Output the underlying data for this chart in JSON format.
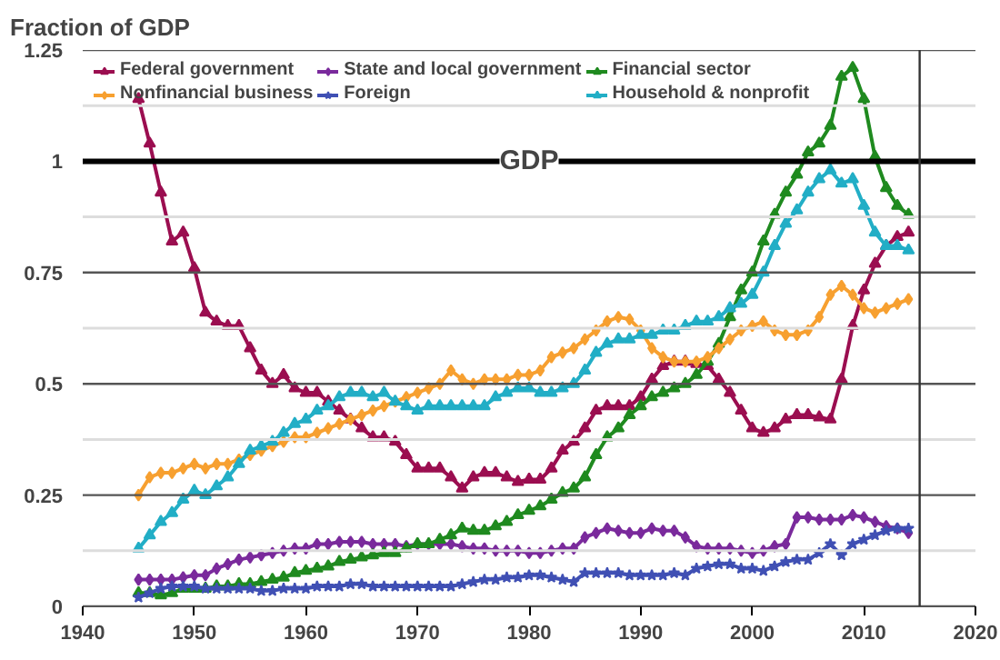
{
  "chart_data": {
    "type": "line",
    "ylabel": "Fraction of GDP",
    "x": [
      1945,
      1946,
      1947,
      1948,
      1949,
      1950,
      1951,
      1952,
      1953,
      1954,
      1955,
      1956,
      1957,
      1958,
      1959,
      1960,
      1961,
      1962,
      1963,
      1964,
      1965,
      1966,
      1967,
      1968,
      1969,
      1970,
      1971,
      1972,
      1973,
      1974,
      1975,
      1976,
      1977,
      1978,
      1979,
      1980,
      1981,
      1982,
      1983,
      1984,
      1985,
      1986,
      1987,
      1988,
      1989,
      1990,
      1991,
      1992,
      1993,
      1994,
      1995,
      1996,
      1997,
      1998,
      1999,
      2000,
      2001,
      2002,
      2003,
      2004,
      2005,
      2006,
      2007,
      2008,
      2009,
      2010,
      2011,
      2012,
      2013,
      2014
    ],
    "xlim": [
      1940,
      2020
    ],
    "xticks": [
      1940,
      1950,
      1960,
      1970,
      1980,
      1990,
      2000,
      2010,
      2020
    ],
    "ylim": [
      0,
      1.25
    ],
    "yticks": [
      0,
      {
        "value": 0.125,
        "label": null
      },
      0.25,
      {
        "value": 0.375,
        "label": null
      },
      0.5,
      {
        "value": 0.625,
        "label": null
      },
      0.75,
      {
        "value": 0.875,
        "label": null
      },
      1,
      {
        "value": 1.125,
        "label": null
      },
      1.25
    ],
    "grid": "y",
    "legend": "top left",
    "series": [
      {
        "name": "Federal government",
        "color": "#9b0e50",
        "marker": "triangle",
        "values": [
          1.14,
          1.04,
          0.93,
          0.82,
          0.84,
          0.76,
          0.66,
          0.64,
          0.63,
          0.63,
          0.58,
          0.53,
          0.5,
          0.52,
          0.49,
          0.48,
          0.48,
          0.46,
          0.44,
          0.42,
          0.4,
          0.38,
          0.38,
          0.37,
          0.34,
          0.31,
          0.31,
          0.31,
          0.29,
          0.265,
          0.29,
          0.3,
          0.3,
          0.29,
          0.28,
          0.285,
          0.285,
          0.31,
          0.35,
          0.37,
          0.4,
          0.44,
          0.45,
          0.45,
          0.45,
          0.47,
          0.51,
          0.54,
          0.55,
          0.55,
          0.545,
          0.54,
          0.51,
          0.48,
          0.44,
          0.4,
          0.39,
          0.4,
          0.42,
          0.43,
          0.43,
          0.425,
          0.42,
          0.51,
          0.63,
          0.71,
          0.77,
          0.81,
          0.83,
          0.84
        ]
      },
      {
        "name": "State and local government",
        "color": "#7a2a9c",
        "marker": "diamond",
        "values": [
          0.06,
          0.06,
          0.06,
          0.06,
          0.065,
          0.07,
          0.07,
          0.085,
          0.095,
          0.105,
          0.11,
          0.115,
          0.12,
          0.125,
          0.13,
          0.13,
          0.14,
          0.14,
          0.145,
          0.145,
          0.145,
          0.14,
          0.14,
          0.14,
          0.135,
          0.14,
          0.14,
          0.14,
          0.14,
          0.135,
          0.13,
          0.13,
          0.125,
          0.125,
          0.125,
          0.12,
          0.12,
          0.125,
          0.13,
          0.13,
          0.155,
          0.165,
          0.175,
          0.17,
          0.165,
          0.165,
          0.175,
          0.17,
          0.17,
          0.155,
          0.135,
          0.13,
          0.13,
          0.13,
          0.125,
          0.12,
          0.125,
          0.135,
          0.14,
          0.2,
          0.2,
          0.195,
          0.195,
          0.195,
          0.205,
          0.2,
          0.19,
          0.18,
          0.175,
          0.165
        ]
      },
      {
        "name": "Financial sector",
        "color": "#1f8a1f",
        "marker": "triangle",
        "values": [
          0.03,
          0.03,
          0.025,
          0.03,
          0.04,
          0.04,
          0.04,
          0.045,
          0.045,
          0.05,
          0.05,
          0.055,
          0.06,
          0.065,
          0.075,
          0.08,
          0.085,
          0.09,
          0.1,
          0.105,
          0.11,
          0.115,
          0.12,
          0.12,
          0.13,
          0.14,
          0.14,
          0.15,
          0.16,
          0.175,
          0.17,
          0.17,
          0.18,
          0.19,
          0.205,
          0.215,
          0.225,
          0.24,
          0.255,
          0.265,
          0.29,
          0.34,
          0.38,
          0.4,
          0.43,
          0.45,
          0.47,
          0.48,
          0.49,
          0.5,
          0.52,
          0.55,
          0.59,
          0.65,
          0.71,
          0.75,
          0.82,
          0.88,
          0.93,
          0.97,
          1.02,
          1.04,
          1.08,
          1.19,
          1.21,
          1.14,
          1.01,
          0.94,
          0.9,
          0.88
        ]
      },
      {
        "name": "Nonfinancial business",
        "color": "#f7a030",
        "marker": "diamond",
        "values": [
          0.25,
          0.29,
          0.3,
          0.3,
          0.31,
          0.32,
          0.31,
          0.32,
          0.32,
          0.33,
          0.34,
          0.35,
          0.36,
          0.37,
          0.38,
          0.38,
          0.39,
          0.4,
          0.41,
          0.42,
          0.43,
          0.44,
          0.45,
          0.46,
          0.47,
          0.48,
          0.49,
          0.5,
          0.53,
          0.51,
          0.5,
          0.51,
          0.51,
          0.51,
          0.52,
          0.52,
          0.53,
          0.56,
          0.57,
          0.58,
          0.6,
          0.62,
          0.64,
          0.65,
          0.645,
          0.62,
          0.58,
          0.56,
          0.55,
          0.55,
          0.55,
          0.56,
          0.58,
          0.6,
          0.62,
          0.63,
          0.64,
          0.62,
          0.61,
          0.61,
          0.62,
          0.65,
          0.7,
          0.72,
          0.7,
          0.67,
          0.66,
          0.67,
          0.68,
          0.69
        ]
      },
      {
        "name": "Foreign",
        "color": "#4050b4",
        "marker": "star",
        "values": [
          0.02,
          0.03,
          0.04,
          0.045,
          0.045,
          0.045,
          0.04,
          0.04,
          0.04,
          0.04,
          0.04,
          0.035,
          0.035,
          0.04,
          0.04,
          0.04,
          0.045,
          0.045,
          0.045,
          0.05,
          0.05,
          0.045,
          0.045,
          0.045,
          0.045,
          0.045,
          0.045,
          0.045,
          0.045,
          0.05,
          0.055,
          0.06,
          0.06,
          0.065,
          0.065,
          0.07,
          0.07,
          0.065,
          0.06,
          0.055,
          0.075,
          0.075,
          0.075,
          0.075,
          0.07,
          0.07,
          0.07,
          0.07,
          0.075,
          0.07,
          0.085,
          0.09,
          0.095,
          0.095,
          0.085,
          0.085,
          0.08,
          0.09,
          0.1,
          0.105,
          0.105,
          0.12,
          0.14,
          0.115,
          0.14,
          0.15,
          0.16,
          0.17,
          0.175,
          0.175
        ]
      },
      {
        "name": "Household & nonprofit",
        "color": "#22aec6",
        "marker": "triangle",
        "values": [
          0.13,
          0.16,
          0.19,
          0.21,
          0.24,
          0.26,
          0.25,
          0.27,
          0.29,
          0.32,
          0.35,
          0.36,
          0.37,
          0.39,
          0.41,
          0.42,
          0.44,
          0.45,
          0.47,
          0.48,
          0.48,
          0.47,
          0.48,
          0.46,
          0.45,
          0.44,
          0.45,
          0.45,
          0.45,
          0.45,
          0.45,
          0.45,
          0.47,
          0.48,
          0.49,
          0.49,
          0.48,
          0.48,
          0.49,
          0.5,
          0.53,
          0.57,
          0.59,
          0.6,
          0.6,
          0.61,
          0.61,
          0.62,
          0.62,
          0.63,
          0.64,
          0.64,
          0.65,
          0.67,
          0.68,
          0.7,
          0.75,
          0.81,
          0.86,
          0.89,
          0.93,
          0.96,
          0.98,
          0.95,
          0.96,
          0.9,
          0.84,
          0.81,
          0.81,
          0.8
        ]
      }
    ],
    "ref_lines": [
      {
        "axis": "y",
        "value": 1,
        "label": "GDP",
        "color": "#000000"
      },
      {
        "axis": "x",
        "value": 2015,
        "label": null,
        "color": "#333333"
      }
    ]
  }
}
